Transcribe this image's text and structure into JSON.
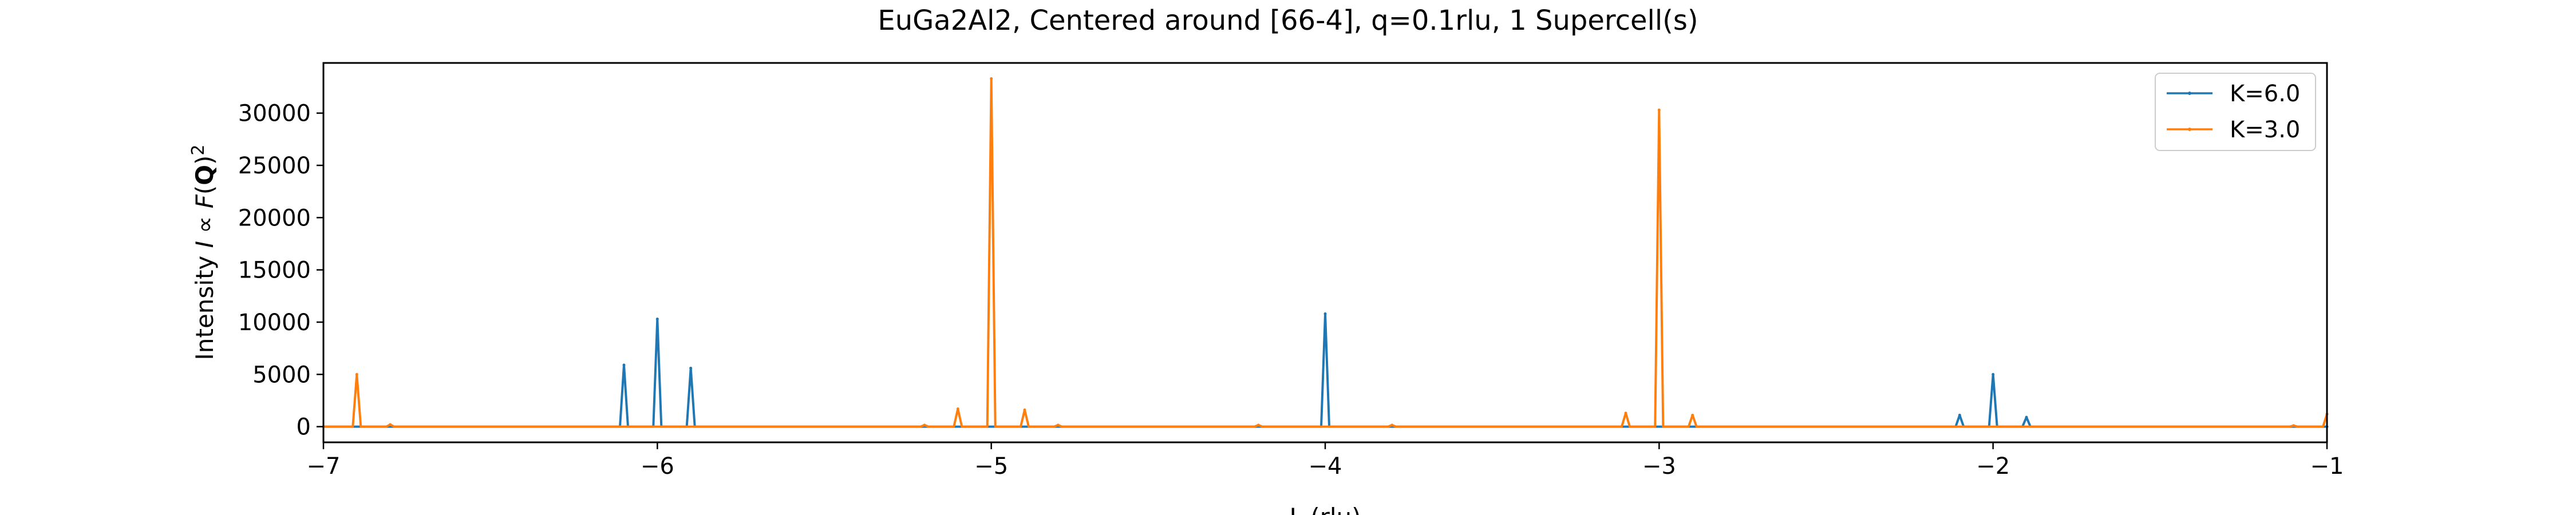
{
  "chart_data": {
    "type": "line",
    "title": "EuGa2Al2, Centered around [66-4], q=0.1rlu, 1 Supercell(s)",
    "xlabel": "L (rlu)",
    "ylabel": "Intensity I ∝ F(Q)²",
    "ylabel_parts": {
      "prefix": "Intensity ",
      "I": "I",
      "prop": " ∝ ",
      "F": "F",
      "open": "(",
      "Q": "Q",
      "close": ")",
      "sup": "2"
    },
    "xlim": [
      -7,
      -1
    ],
    "ylim": [
      -1500,
      34800
    ],
    "xticks": [
      -7,
      -6,
      -5,
      -4,
      -3,
      -2,
      -1
    ],
    "xtick_labels": [
      "−7",
      "−6",
      "−5",
      "−4",
      "−3",
      "−2",
      "−1"
    ],
    "yticks": [
      0,
      5000,
      10000,
      15000,
      20000,
      25000,
      30000
    ],
    "ytick_labels": [
      "0",
      "5000",
      "10000",
      "15000",
      "20000",
      "25000",
      "30000"
    ],
    "legend_position": "top-right",
    "grid": false,
    "series": [
      {
        "name": "K=6.0",
        "color": "#1f77b4",
        "peaks": [
          [
            -7.0,
            0
          ],
          [
            -6.1,
            5900
          ],
          [
            -6.0,
            10300
          ],
          [
            -5.9,
            5600
          ],
          [
            -4.0,
            10800
          ],
          [
            -2.1,
            1100
          ],
          [
            -2.0,
            5000
          ],
          [
            -1.9,
            900
          ],
          [
            -1.0,
            0
          ]
        ]
      },
      {
        "name": "K=3.0",
        "color": "#ff7f0e",
        "peaks": [
          [
            -7.0,
            0
          ],
          [
            -6.9,
            5000
          ],
          [
            -6.8,
            200
          ],
          [
            -5.2,
            150
          ],
          [
            -5.1,
            1700
          ],
          [
            -5.0,
            33300
          ],
          [
            -4.9,
            1600
          ],
          [
            -4.8,
            150
          ],
          [
            -4.2,
            150
          ],
          [
            -3.8,
            150
          ],
          [
            -3.1,
            1300
          ],
          [
            -3.0,
            30300
          ],
          [
            -2.9,
            1100
          ],
          [
            -1.1,
            100
          ],
          [
            -1.0,
            1200
          ]
        ]
      }
    ]
  }
}
